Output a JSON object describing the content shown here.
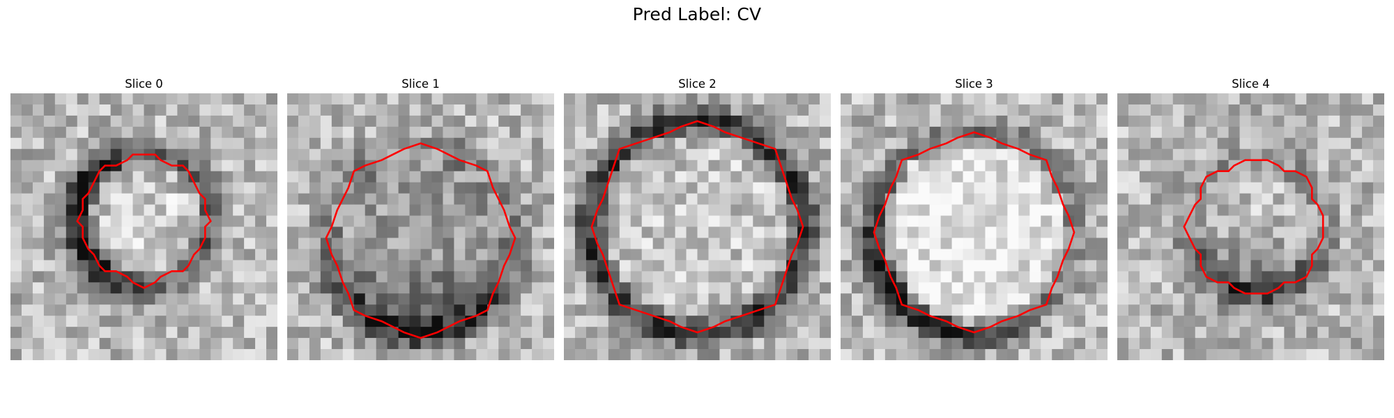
{
  "title": "Pred Label: CV",
  "panels": [
    {
      "label": "Slice 0",
      "seed": 11,
      "center": [
        0.5,
        0.47
      ],
      "r": 0.25,
      "ringDark": 0.55,
      "innerBright": 0.08,
      "darkArc": "left",
      "pixelGrid": 24
    },
    {
      "label": "Slice 1",
      "seed": 23,
      "center": [
        0.5,
        0.55
      ],
      "r": 0.36,
      "ringDark": 0.35,
      "innerBright": -0.1,
      "darkArc": "bottom",
      "pixelGrid": 24
    },
    {
      "label": "Slice 2",
      "seed": 37,
      "center": [
        0.5,
        0.5
      ],
      "r": 0.4,
      "ringDark": 0.5,
      "innerBright": 0.05,
      "darkArc": "ring",
      "pixelGrid": 24
    },
    {
      "label": "Slice 3",
      "seed": 41,
      "center": [
        0.5,
        0.52
      ],
      "r": 0.38,
      "ringDark": 0.45,
      "innerBright": 0.18,
      "darkArc": "bottom-left",
      "pixelGrid": 24
    },
    {
      "label": "Slice 4",
      "seed": 53,
      "center": [
        0.52,
        0.5
      ],
      "r": 0.26,
      "ringDark": 0.3,
      "innerBright": 0.02,
      "darkArc": "bottom",
      "pixelGrid": 24
    }
  ]
}
